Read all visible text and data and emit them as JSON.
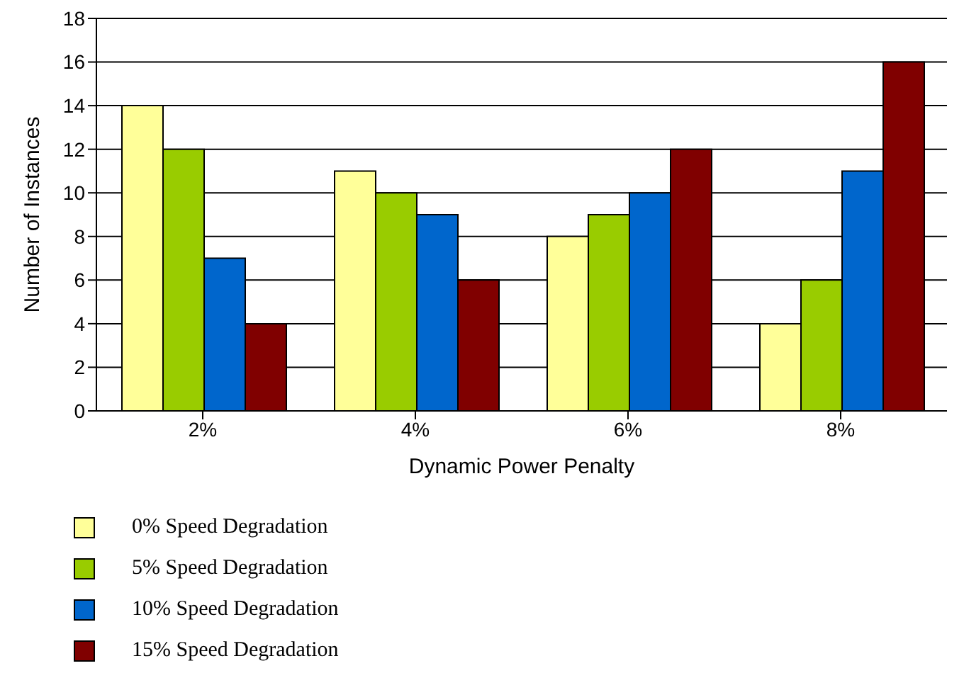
{
  "chart_data": {
    "type": "bar",
    "xlabel": "Dynamic Power Penalty",
    "ylabel": "Number of Instances",
    "categories": [
      "2%",
      "4%",
      "6%",
      "8%"
    ],
    "series": [
      {
        "name": "0% Speed Degradation",
        "color": "#ffff99",
        "values": [
          14,
          11,
          8,
          4
        ]
      },
      {
        "name": "5% Speed Degradation",
        "color": "#99cc00",
        "values": [
          12,
          10,
          9,
          6
        ]
      },
      {
        "name": "10% Speed Degradation",
        "color": "#0066cc",
        "values": [
          7,
          9,
          10,
          11
        ]
      },
      {
        "name": "15% Speed Degradation",
        "color": "#800000",
        "values": [
          4,
          6,
          12,
          16
        ]
      }
    ],
    "ylim": [
      0,
      18
    ],
    "yticks": [
      0,
      2,
      4,
      6,
      8,
      10,
      12,
      14,
      16,
      18
    ],
    "grid": "y",
    "legend": "bottom"
  }
}
